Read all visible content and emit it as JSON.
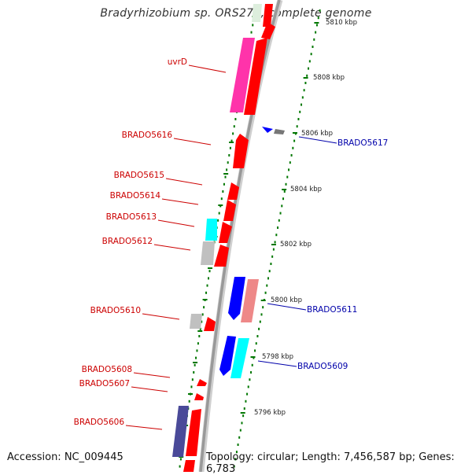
{
  "title": "Bradyrhizobium sp. ORS278, complete genome",
  "footer": {
    "accession": "Accession: NC_009445",
    "summary": "Topology: circular; Length: 7,456,587 bp; Genes: 6,783"
  },
  "scale_labels": [
    {
      "text": "5810 kbp",
      "pos": 5810
    },
    {
      "text": "5808 kbp",
      "pos": 5808
    },
    {
      "text": "5806 kbp",
      "pos": 5806
    },
    {
      "text": "5804 kbp",
      "pos": 5804
    },
    {
      "text": "5802 kbp",
      "pos": 5802
    },
    {
      "text": "5800 kbp",
      "pos": 5800
    },
    {
      "text": "5798 kbp",
      "pos": 5798
    },
    {
      "text": "5796 kbp",
      "pos": 5796
    }
  ],
  "gene_labels_left": [
    "uvrD",
    "BRADO5616",
    "BRADO5615",
    "BRADO5614",
    "BRADO5613",
    "BRADO5612",
    "BRADO5610",
    "BRADO5608",
    "BRADO5607",
    "BRADO5606"
  ],
  "gene_labels_right": [
    "BRADO5617",
    "BRADO5611",
    "BRADO5609"
  ],
  "colors": {
    "label_left": "#cc0000",
    "label_right": "#0000aa",
    "gene_red": "#ff0000",
    "pink": "#ff33aa",
    "cyan": "#00ffff",
    "gray": "#c0c0c0",
    "blue": "#0000ff",
    "navy": "#4a4a99",
    "salmon": "#ee8888",
    "backbone": "#999999",
    "ticks": "#007700"
  }
}
